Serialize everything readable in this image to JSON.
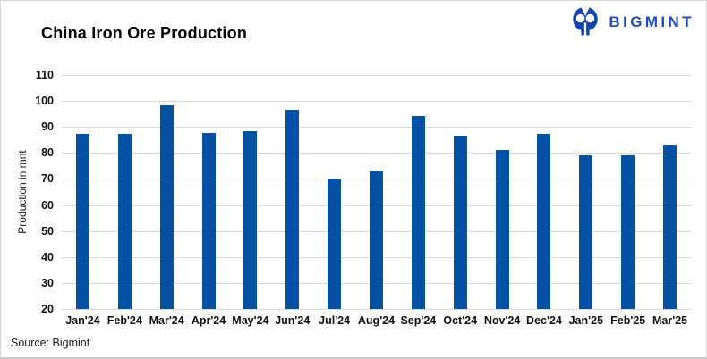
{
  "header": {
    "title": "China Iron Ore Production",
    "brand_name": "BIGMINT"
  },
  "footer": {
    "source": "Source: Bigmint"
  },
  "colors": {
    "bar": "#0551a4",
    "gridline": "#d9d9d9",
    "brand_text_blue": "#1d4bc0",
    "brand_icon_blue": "#1545a8",
    "text": "#000000"
  },
  "chart_data": {
    "type": "bar",
    "title": "China Iron Ore Production",
    "xlabel": "",
    "ylabel": "Production in mnt",
    "categories": [
      "Jan'24",
      "Feb'24",
      "Mar'24",
      "Apr'24",
      "May'24",
      "Jun'24",
      "Jul'24",
      "Aug'24",
      "Sep'24",
      "Oct'24",
      "Nov'24",
      "Dec'24",
      "Jan'25",
      "Feb'25",
      "Mar'25"
    ],
    "values": [
      87.5,
      87.5,
      98.3,
      87.6,
      88.3,
      96.5,
      70.0,
      73.4,
      94.1,
      86.5,
      81.3,
      87.3,
      79.1,
      79.1,
      83.3
    ],
    "ylim": [
      20,
      110
    ],
    "ytick_step": 10,
    "yticks": [
      110,
      100,
      90,
      80,
      70,
      60,
      50,
      40,
      30,
      20
    ],
    "grid": true,
    "legend": false,
    "source": "Source: Bigmint"
  }
}
